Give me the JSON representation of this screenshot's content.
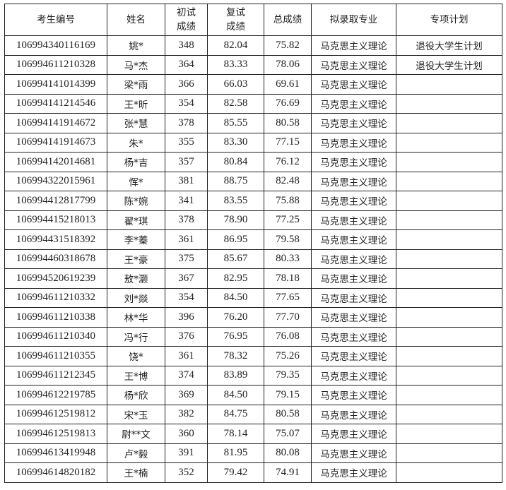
{
  "headers": [
    "考生编号",
    "姓名",
    "初试\n成绩",
    "复试\n成绩",
    "总成绩",
    "拟录取专业",
    "专项计划"
  ],
  "rows": [
    [
      "106994340116169",
      "姚*",
      "348",
      "82.04",
      "75.82",
      "马克思主义理论",
      "退役大学生计划"
    ],
    [
      "106994611210328",
      "马*杰",
      "364",
      "83.33",
      "78.06",
      "马克思主义理论",
      "退役大学生计划"
    ],
    [
      "106994141014399",
      "梁*雨",
      "366",
      "66.03",
      "69.61",
      "马克思主义理论",
      ""
    ],
    [
      "106994141214546",
      "王*昕",
      "354",
      "82.58",
      "76.69",
      "马克思主义理论",
      ""
    ],
    [
      "106994141914672",
      "张*慧",
      "378",
      "85.55",
      "80.58",
      "马克思主义理论",
      ""
    ],
    [
      "106994141914673",
      "朱*",
      "355",
      "83.30",
      "77.15",
      "马克思主义理论",
      ""
    ],
    [
      "106994142014681",
      "杨*吉",
      "357",
      "80.84",
      "76.12",
      "马克思主义理论",
      ""
    ],
    [
      "106994322015961",
      "恽*",
      "381",
      "88.75",
      "82.48",
      "马克思主义理论",
      ""
    ],
    [
      "106994412817799",
      "陈*婉",
      "341",
      "83.55",
      "75.88",
      "马克思主义理论",
      ""
    ],
    [
      "106994415218013",
      "翟*琪",
      "378",
      "78.90",
      "77.25",
      "马克思主义理论",
      ""
    ],
    [
      "106994431518392",
      "李*蓁",
      "361",
      "86.95",
      "79.58",
      "马克思主义理论",
      ""
    ],
    [
      "106994460318678",
      "王*豪",
      "375",
      "85.67",
      "80.33",
      "马克思主义理论",
      ""
    ],
    [
      "106994520619239",
      "敖*灏",
      "367",
      "82.95",
      "78.18",
      "马克思主义理论",
      ""
    ],
    [
      "106994611210332",
      "刘*燚",
      "354",
      "84.50",
      "77.65",
      "马克思主义理论",
      ""
    ],
    [
      "106994611210338",
      "林*华",
      "396",
      "76.20",
      "77.70",
      "马克思主义理论",
      ""
    ],
    [
      "106994611210340",
      "冯*行",
      "376",
      "76.95",
      "76.08",
      "马克思主义理论",
      ""
    ],
    [
      "106994611210355",
      "饶*",
      "361",
      "78.32",
      "75.26",
      "马克思主义理论",
      ""
    ],
    [
      "106994611212345",
      "王*博",
      "374",
      "83.89",
      "79.35",
      "马克思主义理论",
      ""
    ],
    [
      "106994612219785",
      "杨*欣",
      "369",
      "84.50",
      "79.15",
      "马克思主义理论",
      ""
    ],
    [
      "106994612519812",
      "宋*玉",
      "382",
      "84.75",
      "80.58",
      "马克思主义理论",
      ""
    ],
    [
      "106994612519813",
      "尉**文",
      "360",
      "78.14",
      "75.07",
      "马克思主义理论",
      ""
    ],
    [
      "106994613419948",
      "卢*毅",
      "391",
      "81.95",
      "80.08",
      "马克思主义理论",
      ""
    ],
    [
      "106994614820182",
      "王*楠",
      "352",
      "79.42",
      "74.91",
      "马克思主义理论",
      ""
    ]
  ]
}
